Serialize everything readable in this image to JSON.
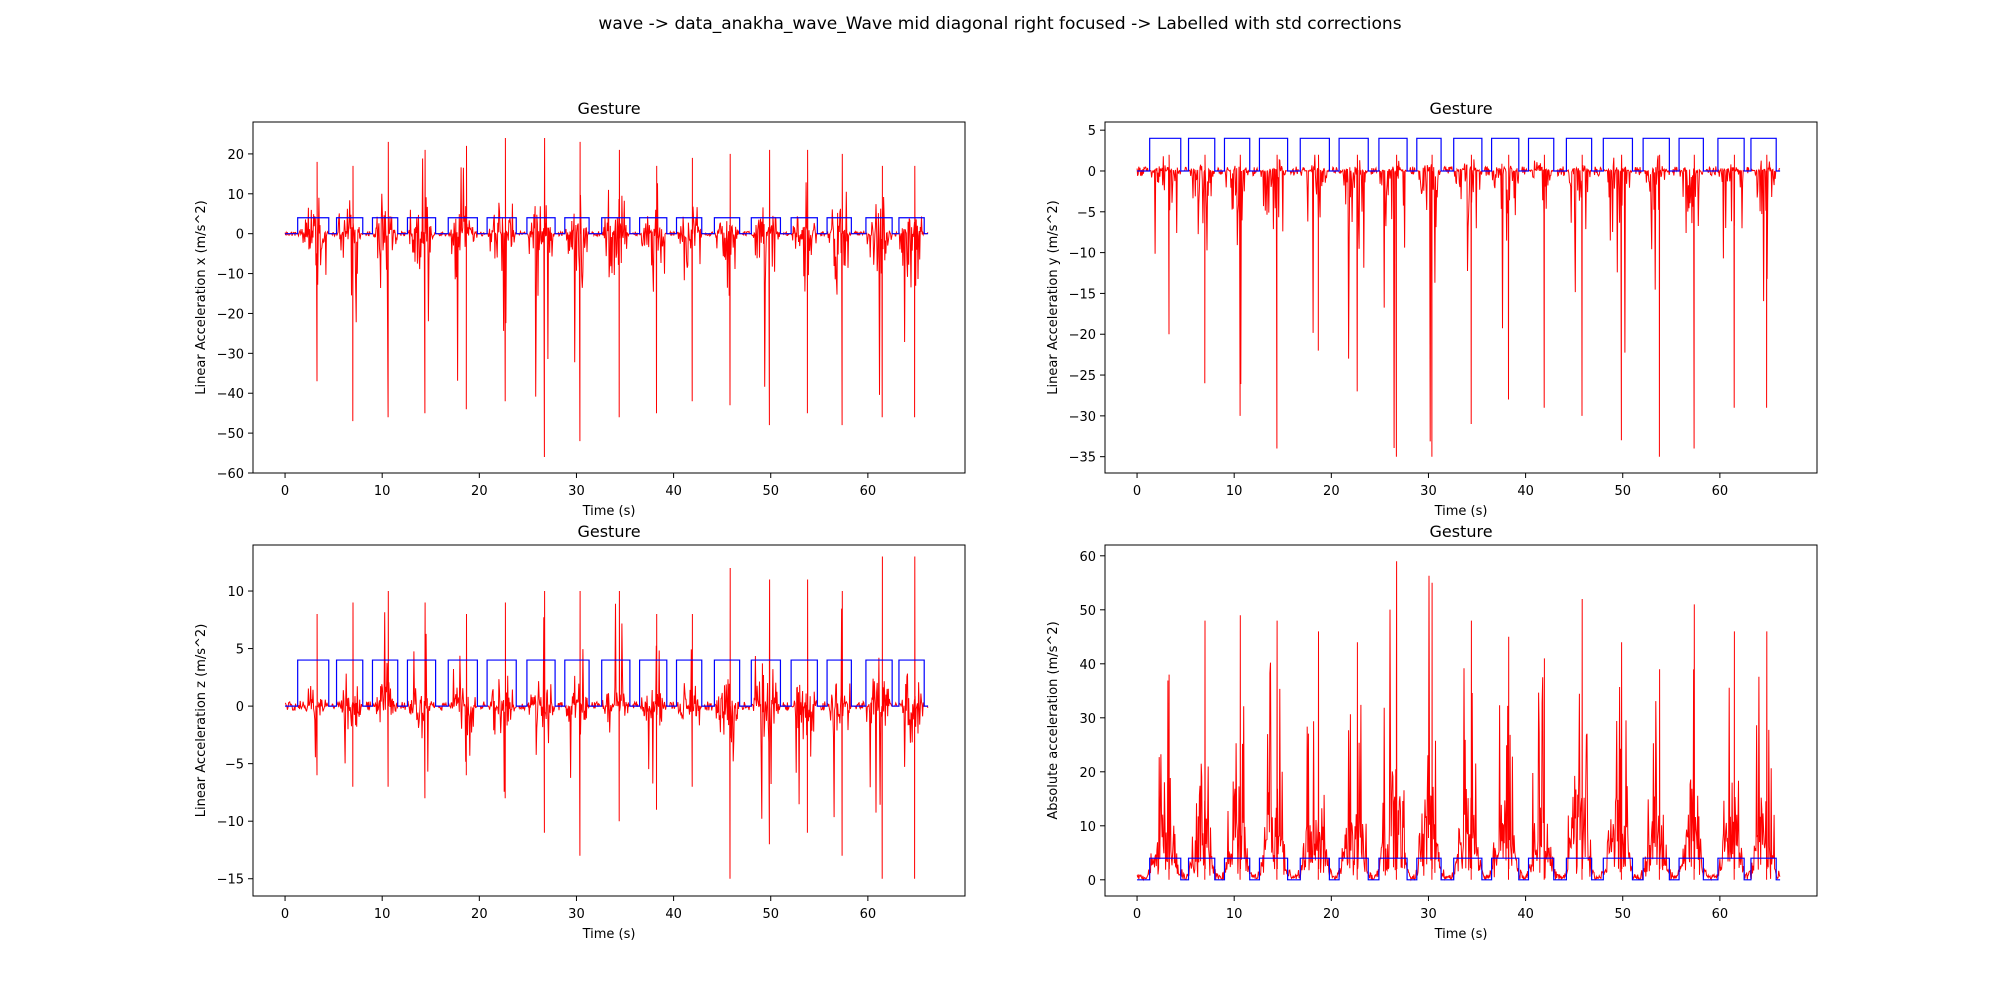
{
  "suptitle": "wave -> data_anakha_wave_Wave mid diagonal right focused -> Labelled with std corrections",
  "colors": {
    "signal": "#ff0000",
    "label": "#0000ff",
    "axis": "#000000"
  },
  "chart_data": [
    {
      "type": "line",
      "title": "Gesture",
      "xlabel": "Time (s)",
      "ylabel": "Linear Acceleration x (m/s^2)",
      "xlim": [
        -3.3,
        70
      ],
      "ylim": [
        -60,
        28
      ],
      "xticks": [
        "0",
        "10",
        "20",
        "30",
        "40",
        "50",
        "60"
      ],
      "yticks": [
        "−60",
        "−50",
        "−40",
        "−30",
        "−20",
        "−10",
        "0",
        "10",
        "20"
      ],
      "label_level": 4,
      "peaks": [
        [
          18,
          -37
        ],
        [
          17,
          -47
        ],
        [
          23,
          -46
        ],
        [
          21,
          -45
        ],
        [
          22,
          -44
        ],
        [
          24,
          -42
        ],
        [
          24,
          -56
        ],
        [
          23,
          -52
        ],
        [
          21,
          -46
        ],
        [
          17,
          -45
        ],
        [
          19,
          -42
        ],
        [
          20,
          -43
        ],
        [
          21,
          -48
        ],
        [
          21,
          -45
        ],
        [
          20,
          -48
        ],
        [
          17,
          -46
        ]
      ],
      "series": [
        {
          "name": "",
          "color": "#ff0000",
          "role": "signal"
        },
        {
          "name": "",
          "color": "#0000ff",
          "role": "label"
        }
      ]
    },
    {
      "type": "line",
      "title": "Gesture",
      "xlabel": "Time (s)",
      "ylabel": "Linear Acceleration y (m/s^2)",
      "xlim": [
        -3.3,
        70
      ],
      "ylim": [
        -37,
        6
      ],
      "xticks": [
        "0",
        "10",
        "20",
        "30",
        "40",
        "50",
        "60"
      ],
      "yticks": [
        "−35",
        "−30",
        "−25",
        "−20",
        "−15",
        "−10",
        "−5",
        "0",
        "5"
      ],
      "label_level": 4,
      "peaks": [
        [
          2,
          -20
        ],
        [
          2,
          -26
        ],
        [
          2,
          -30
        ],
        [
          2,
          -34
        ],
        [
          2,
          -22
        ],
        [
          2,
          -27
        ],
        [
          2,
          -35
        ],
        [
          2,
          -35
        ],
        [
          2,
          -31
        ],
        [
          2,
          -28
        ],
        [
          2,
          -29
        ],
        [
          2,
          -30
        ],
        [
          2,
          -33
        ],
        [
          2,
          -35
        ],
        [
          2,
          -34
        ],
        [
          2,
          -29
        ]
      ],
      "series": [
        {
          "name": "",
          "color": "#ff0000",
          "role": "signal"
        },
        {
          "name": "",
          "color": "#0000ff",
          "role": "label"
        }
      ]
    },
    {
      "type": "line",
      "title": "Gesture",
      "xlabel": "Time (s)",
      "ylabel": "Linear Acceleration z (m/s^2)",
      "xlim": [
        -3.3,
        70
      ],
      "ylim": [
        -16.5,
        14
      ],
      "xticks": [
        "0",
        "10",
        "20",
        "30",
        "40",
        "50",
        "60"
      ],
      "yticks": [
        "−15",
        "−10",
        "−5",
        "0",
        "5",
        "10"
      ],
      "label_level": 4,
      "peaks": [
        [
          8,
          -6
        ],
        [
          9,
          -7
        ],
        [
          10,
          -7
        ],
        [
          9,
          -8
        ],
        [
          8,
          -6
        ],
        [
          9,
          -8
        ],
        [
          10,
          -11
        ],
        [
          10,
          -13
        ],
        [
          10,
          -10
        ],
        [
          8,
          -9
        ],
        [
          8,
          -7
        ],
        [
          12,
          -15
        ],
        [
          11,
          -12
        ],
        [
          11,
          -11
        ],
        [
          10,
          -13
        ],
        [
          13,
          -15
        ]
      ],
      "series": [
        {
          "name": "",
          "color": "#ff0000",
          "role": "signal"
        },
        {
          "name": "",
          "color": "#0000ff",
          "role": "label"
        }
      ]
    },
    {
      "type": "line",
      "title": "Gesture",
      "xlabel": "Time (s)",
      "ylabel": "Absolute acceleration (m/s^2)",
      "xlim": [
        -3.3,
        70
      ],
      "ylim": [
        -3,
        62
      ],
      "xticks": [
        "0",
        "10",
        "20",
        "30",
        "40",
        "50",
        "60"
      ],
      "yticks": [
        "0",
        "10",
        "20",
        "30",
        "40",
        "50",
        "60"
      ],
      "label_level": 4,
      "peaks": [
        [
          38,
          0
        ],
        [
          48,
          0
        ],
        [
          49,
          0
        ],
        [
          48,
          0
        ],
        [
          46,
          0
        ],
        [
          44,
          0
        ],
        [
          59,
          0
        ],
        [
          55,
          0
        ],
        [
          48,
          0
        ],
        [
          45,
          0
        ],
        [
          41,
          0
        ],
        [
          52,
          0
        ],
        [
          44,
          0
        ],
        [
          39,
          0
        ],
        [
          51,
          0
        ],
        [
          46,
          0
        ]
      ],
      "series": [
        {
          "name": "",
          "color": "#ff0000",
          "role": "signal"
        },
        {
          "name": "",
          "color": "#0000ff",
          "role": "label"
        }
      ]
    }
  ],
  "gesture_windows": [
    [
      1.3,
      4.5
    ],
    [
      5.3,
      8.0
    ],
    [
      9.0,
      11.6
    ],
    [
      12.6,
      15.5
    ],
    [
      16.8,
      19.8
    ],
    [
      20.8,
      23.8
    ],
    [
      24.9,
      27.8
    ],
    [
      28.8,
      31.3
    ],
    [
      32.6,
      35.5
    ],
    [
      36.5,
      39.3
    ],
    [
      40.3,
      42.9
    ],
    [
      44.2,
      46.8
    ],
    [
      48.0,
      51.0
    ],
    [
      52.1,
      54.8
    ],
    [
      55.8,
      58.3
    ],
    [
      59.8,
      62.5
    ],
    [
      63.2,
      65.8
    ]
  ],
  "time_end": 66.2
}
